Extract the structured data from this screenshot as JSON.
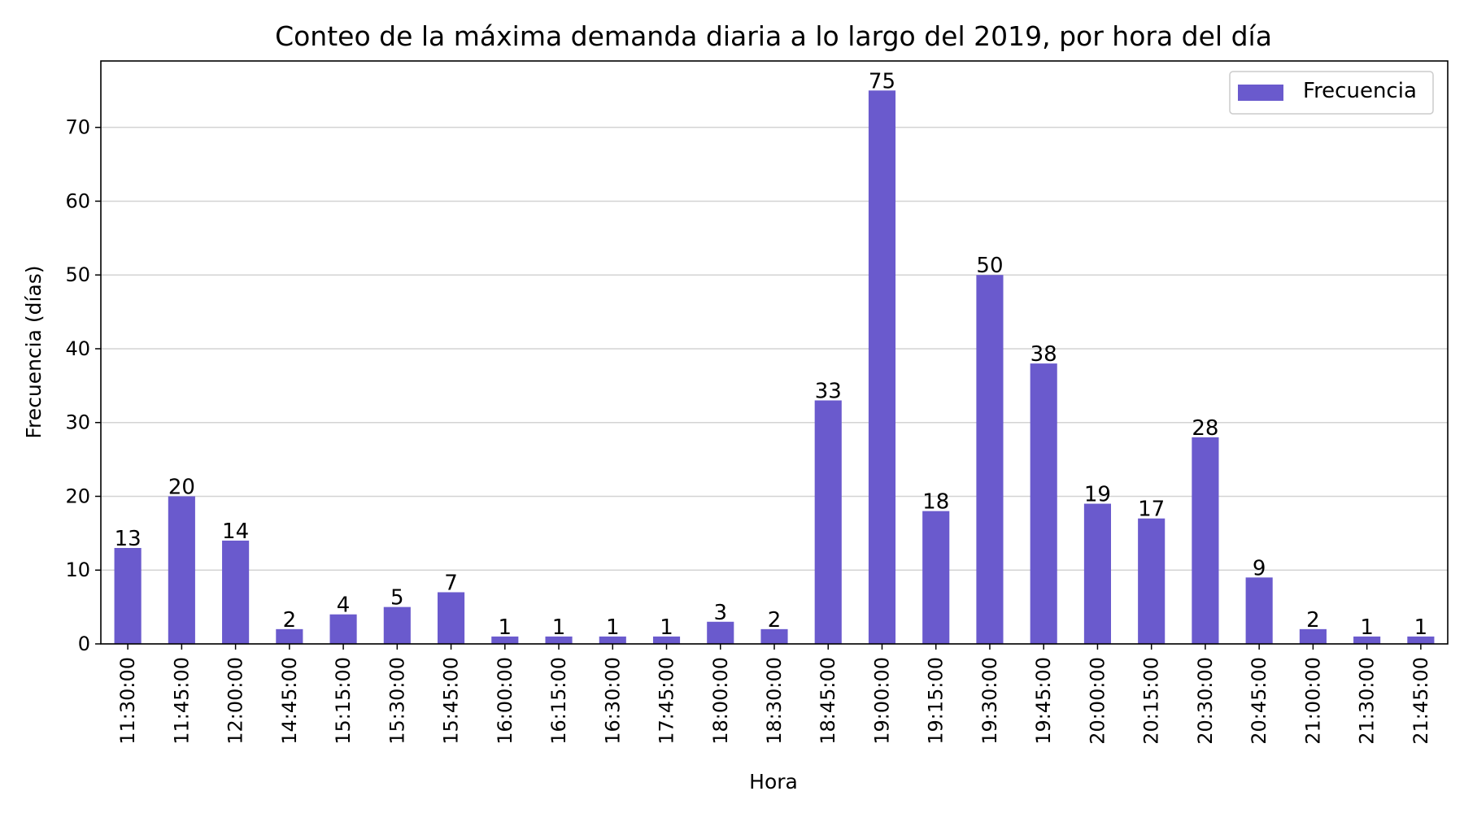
{
  "chart_data": {
    "type": "bar",
    "title": "Conteo de la máxima demanda diaria a lo largo del 2019, por hora del día",
    "xlabel": "Hora",
    "ylabel": "Frecuencia (días)",
    "ylim": [
      0,
      79
    ],
    "yticks": [
      0,
      10,
      20,
      30,
      40,
      50,
      60,
      70
    ],
    "grid": "horizontal",
    "legend": {
      "position": "top-right",
      "entries": [
        "Frecuencia"
      ]
    },
    "categories": [
      "11:30:00",
      "11:45:00",
      "12:00:00",
      "14:45:00",
      "15:15:00",
      "15:30:00",
      "15:45:00",
      "16:00:00",
      "16:15:00",
      "16:30:00",
      "17:45:00",
      "18:00:00",
      "18:30:00",
      "18:45:00",
      "19:00:00",
      "19:15:00",
      "19:30:00",
      "19:45:00",
      "20:00:00",
      "20:15:00",
      "20:30:00",
      "20:45:00",
      "21:00:00",
      "21:30:00",
      "21:45:00"
    ],
    "series": [
      {
        "name": "Frecuencia",
        "color": "#6A5ACD",
        "values": [
          13,
          20,
          14,
          2,
          4,
          5,
          7,
          1,
          1,
          1,
          1,
          3,
          2,
          33,
          75,
          18,
          50,
          38,
          19,
          17,
          28,
          9,
          2,
          1,
          1
        ]
      }
    ]
  }
}
